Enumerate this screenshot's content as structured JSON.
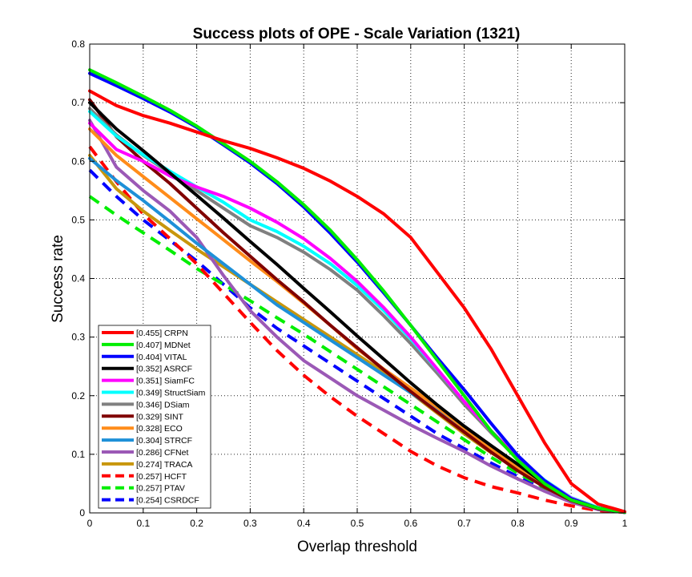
{
  "chart_data": {
    "type": "line",
    "title": "Success plots of OPE - Scale Variation (1321)",
    "xlabel": "Overlap threshold",
    "ylabel": "Success rate",
    "xlim": [
      0,
      1
    ],
    "ylim": [
      0,
      0.8
    ],
    "xticks": [
      "0",
      "0.1",
      "0.2",
      "0.3",
      "0.4",
      "0.5",
      "0.6",
      "0.7",
      "0.8",
      "0.9",
      "1"
    ],
    "yticks": [
      "0",
      "0.1",
      "0.2",
      "0.3",
      "0.4",
      "0.5",
      "0.6",
      "0.7",
      "0.8"
    ],
    "grid": "dotted",
    "legend_position": "bottom-left",
    "x": [
      0,
      0.05,
      0.1,
      0.15,
      0.2,
      0.25,
      0.3,
      0.35,
      0.4,
      0.45,
      0.5,
      0.55,
      0.6,
      0.65,
      0.7,
      0.75,
      0.8,
      0.85,
      0.9,
      0.95,
      1
    ],
    "series": [
      {
        "name": "CRPN",
        "label": "[0.455] CRPN",
        "color": "#ff0000",
        "dash": "solid",
        "values": [
          0.72,
          0.695,
          0.678,
          0.665,
          0.65,
          0.635,
          0.622,
          0.606,
          0.588,
          0.566,
          0.54,
          0.51,
          0.47,
          0.41,
          0.35,
          0.28,
          0.2,
          0.12,
          0.05,
          0.015,
          0.002
        ]
      },
      {
        "name": "MDNet",
        "label": "[0.407] MDNet",
        "color": "#00ee00",
        "dash": "solid",
        "values": [
          0.756,
          0.734,
          0.711,
          0.687,
          0.66,
          0.63,
          0.6,
          0.565,
          0.526,
          0.482,
          0.432,
          0.378,
          0.32,
          0.26,
          0.2,
          0.14,
          0.09,
          0.05,
          0.022,
          0.008,
          0.001
        ]
      },
      {
        "name": "VITAL",
        "label": "[0.404] VITAL",
        "color": "#0000ff",
        "dash": "solid",
        "values": [
          0.75,
          0.729,
          0.707,
          0.684,
          0.658,
          0.628,
          0.597,
          0.562,
          0.522,
          0.477,
          0.428,
          0.375,
          0.32,
          0.264,
          0.21,
          0.153,
          0.098,
          0.055,
          0.024,
          0.008,
          0.001
        ]
      },
      {
        "name": "ASRCF",
        "label": "[0.352] ASRCF",
        "color": "#000000",
        "dash": "solid",
        "values": [
          0.7,
          0.655,
          0.618,
          0.58,
          0.542,
          0.503,
          0.463,
          0.424,
          0.383,
          0.343,
          0.302,
          0.262,
          0.222,
          0.184,
          0.148,
          0.115,
          0.083,
          0.05,
          0.024,
          0.008,
          0.001
        ]
      },
      {
        "name": "SiamFC",
        "label": "[0.351] SiamFC",
        "color": "#ff00ff",
        "dash": "solid",
        "values": [
          0.665,
          0.62,
          0.6,
          0.575,
          0.556,
          0.54,
          0.52,
          0.496,
          0.468,
          0.434,
          0.395,
          0.35,
          0.3,
          0.245,
          0.19,
          0.14,
          0.095,
          0.055,
          0.025,
          0.008,
          0.001
        ]
      },
      {
        "name": "StructSiam",
        "label": "[0.349] StructSiam",
        "color": "#00ffff",
        "dash": "solid",
        "values": [
          0.685,
          0.643,
          0.611,
          0.583,
          0.556,
          0.53,
          0.5,
          0.48,
          0.455,
          0.425,
          0.388,
          0.345,
          0.297,
          0.244,
          0.19,
          0.14,
          0.095,
          0.056,
          0.026,
          0.009,
          0.001
        ]
      },
      {
        "name": "DSiam",
        "label": "[0.346] DSiam",
        "color": "#808080",
        "dash": "solid",
        "values": [
          0.69,
          0.645,
          0.61,
          0.58,
          0.55,
          0.52,
          0.49,
          0.47,
          0.445,
          0.415,
          0.38,
          0.336,
          0.289,
          0.238,
          0.185,
          0.137,
          0.092,
          0.054,
          0.025,
          0.009,
          0.001
        ]
      },
      {
        "name": "SINT",
        "label": "[0.329] SINT",
        "color": "#800000",
        "dash": "solid",
        "values": [
          0.705,
          0.642,
          0.6,
          0.562,
          0.52,
          0.478,
          0.438,
          0.398,
          0.36,
          0.32,
          0.282,
          0.244,
          0.207,
          0.172,
          0.138,
          0.104,
          0.072,
          0.044,
          0.021,
          0.007,
          0.001
        ]
      },
      {
        "name": "ECO",
        "label": "[0.328] ECO",
        "color": "#ff8c1a",
        "dash": "solid",
        "values": [
          0.655,
          0.61,
          0.574,
          0.538,
          0.502,
          0.466,
          0.43,
          0.395,
          0.358,
          0.32,
          0.28,
          0.245,
          0.213,
          0.18,
          0.145,
          0.11,
          0.078,
          0.048,
          0.024,
          0.008,
          0.001
        ]
      },
      {
        "name": "STRCF",
        "label": "[0.304] STRCF",
        "color": "#1e90d8",
        "dash": "solid",
        "values": [
          0.605,
          0.567,
          0.533,
          0.497,
          0.46,
          0.425,
          0.39,
          0.355,
          0.325,
          0.295,
          0.265,
          0.235,
          0.205,
          0.174,
          0.14,
          0.108,
          0.076,
          0.047,
          0.023,
          0.008,
          0.001
        ]
      },
      {
        "name": "CFNet",
        "label": "[0.286] CFNet",
        "color": "#9b59b6",
        "dash": "solid",
        "values": [
          0.67,
          0.59,
          0.55,
          0.515,
          0.47,
          0.405,
          0.345,
          0.3,
          0.26,
          0.23,
          0.2,
          0.175,
          0.15,
          0.127,
          0.105,
          0.08,
          0.058,
          0.037,
          0.018,
          0.006,
          0.001
        ]
      },
      {
        "name": "TRACA",
        "label": "[0.274] TRACA",
        "color": "#c8960c",
        "dash": "solid",
        "values": [
          0.61,
          0.553,
          0.515,
          0.482,
          0.45,
          0.42,
          0.39,
          0.36,
          0.33,
          0.3,
          0.27,
          0.24,
          0.205,
          0.17,
          0.135,
          0.103,
          0.075,
          0.047,
          0.023,
          0.008,
          0.001
        ]
      },
      {
        "name": "HCFT",
        "label": "[0.257] HCFT",
        "color": "#ff0000",
        "dash": "dashed",
        "values": [
          0.625,
          0.565,
          0.51,
          0.468,
          0.425,
          0.375,
          0.325,
          0.277,
          0.235,
          0.198,
          0.165,
          0.135,
          0.105,
          0.08,
          0.06,
          0.045,
          0.034,
          0.022,
          0.012,
          0.004,
          0.001
        ]
      },
      {
        "name": "PTAV",
        "label": "[0.257] PTAV",
        "color": "#00ee00",
        "dash": "dashed",
        "values": [
          0.54,
          0.508,
          0.478,
          0.448,
          0.417,
          0.39,
          0.362,
          0.333,
          0.305,
          0.275,
          0.245,
          0.215,
          0.185,
          0.155,
          0.125,
          0.095,
          0.068,
          0.043,
          0.02,
          0.007,
          0.001
        ]
      },
      {
        "name": "CSRDCF",
        "label": "[0.254] CSRDCF",
        "color": "#0000ff",
        "dash": "dashed",
        "values": [
          0.585,
          0.54,
          0.5,
          0.465,
          0.43,
          0.39,
          0.35,
          0.315,
          0.285,
          0.255,
          0.225,
          0.195,
          0.165,
          0.135,
          0.11,
          0.085,
          0.062,
          0.04,
          0.019,
          0.006,
          0.001
        ]
      }
    ]
  }
}
